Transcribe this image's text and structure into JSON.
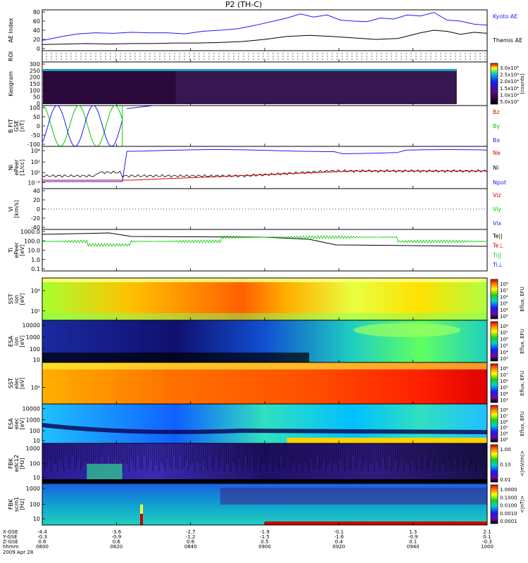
{
  "title": "P2 (TH-C)",
  "colors": {
    "blue": "#1a1aff",
    "black": "#000000",
    "red": "#e00000",
    "green": "#00cc00",
    "grid": "#000000"
  },
  "chart_data": [
    {
      "id": "ae",
      "type": "line",
      "ylabel_lines": [
        "AE Index"
      ],
      "ylim": [
        0,
        80
      ],
      "yticks": [
        "80",
        "60",
        "40",
        "20",
        "0"
      ],
      "legend": [
        {
          "name": "Kyoto AE",
          "color": "#1a1aff"
        },
        {
          "name": "Themis AE",
          "color": "#000000"
        }
      ],
      "series": [
        {
          "name": "Kyoto AE",
          "color": "#1a1aff",
          "x": [
            0,
            0.04,
            0.08,
            0.12,
            0.16,
            0.2,
            0.24,
            0.28,
            0.32,
            0.36,
            0.4,
            0.44,
            0.48,
            0.52,
            0.55,
            0.58,
            0.61,
            0.64,
            0.67,
            0.7,
            0.73,
            0.76,
            0.79,
            0.82,
            0.85,
            0.88,
            0.91,
            0.94,
            0.97,
            1.0
          ],
          "y": [
            20,
            27,
            33,
            35,
            34,
            36,
            35,
            35,
            33,
            38,
            40,
            43,
            50,
            58,
            64,
            72,
            66,
            70,
            60,
            58,
            57,
            64,
            62,
            70,
            68,
            75,
            60,
            58,
            52,
            50
          ]
        },
        {
          "name": "Themis AE",
          "color": "#000000",
          "x": [
            0,
            0.05,
            0.1,
            0.15,
            0.2,
            0.25,
            0.3,
            0.35,
            0.4,
            0.45,
            0.5,
            0.55,
            0.6,
            0.65,
            0.7,
            0.75,
            0.8,
            0.85,
            0.88,
            0.91,
            0.94,
            0.97,
            1.0
          ],
          "y": [
            12,
            13,
            14,
            13,
            14,
            14,
            15,
            15,
            16,
            18,
            22,
            28,
            30,
            28,
            25,
            22,
            24,
            35,
            40,
            38,
            32,
            36,
            34
          ]
        }
      ]
    },
    {
      "id": "roi",
      "type": "scatter",
      "ylabel_lines": [
        "ROI"
      ]
    },
    {
      "id": "keogram",
      "type": "heatmap",
      "ylabel_lines": [
        "Keogram"
      ],
      "ylim": [
        0,
        300
      ],
      "yticks": [
        "300",
        "250",
        "200",
        "150",
        "100",
        "50",
        "0"
      ],
      "colorbar": {
        "title": "[counts]",
        "ticks": [
          "3.0x10⁴",
          "2.5x10⁴",
          "2.0x10⁴",
          "1.5x10⁴",
          "1.0x10⁴",
          "5.0x10³"
        ]
      }
    },
    {
      "id": "bfit",
      "type": "line",
      "ylabel_lines": [
        "B FIT",
        "GSE",
        "[nT]"
      ],
      "ylim": [
        -100,
        100
      ],
      "yticks": [
        "100",
        "50",
        "0",
        "-50",
        "-100"
      ],
      "legend": [
        {
          "name": "Bz",
          "color": "#e00000"
        },
        {
          "name": "By",
          "color": "#00cc00"
        },
        {
          "name": "Bx",
          "color": "#1a1aff"
        }
      ]
    },
    {
      "id": "density",
      "type": "line",
      "ylabel_lines": [
        "Ni",
        "ePeer",
        "[1/cc]"
      ],
      "yticks": [
        "10⁴",
        "10²",
        "10⁰",
        "10⁻²"
      ],
      "legend": [
        {
          "name": "Ne",
          "color": "#e00000"
        },
        {
          "name": "Ni",
          "color": "#000000"
        },
        {
          "name": "Npot",
          "color": "#1a1aff"
        }
      ]
    },
    {
      "id": "velocity",
      "type": "line",
      "ylabel_lines": [
        "Vi",
        "[km/s]"
      ],
      "yticks": [
        "40",
        "20",
        "0",
        "-20",
        "-40"
      ],
      "legend": [
        {
          "name": "Viz",
          "color": "#e00000"
        },
        {
          "name": "Viy",
          "color": "#00cc00"
        },
        {
          "name": "Vix",
          "color": "#1a1aff"
        }
      ]
    },
    {
      "id": "temperature",
      "type": "line",
      "ylabel_lines": [
        "Ti",
        "ePeer",
        "[eV]"
      ],
      "yticks": [
        "1000.0",
        "100.0",
        "10.0",
        "1.0",
        "0.1"
      ],
      "legend": [
        {
          "name": "Te||",
          "color": "#000000"
        },
        {
          "name": "Te⊥",
          "color": "#e00000"
        },
        {
          "name": "Ti||",
          "color": "#00cc00"
        },
        {
          "name": "Ti⊥",
          "color": "#1a1aff"
        }
      ]
    },
    {
      "id": "sst_ion",
      "type": "heatmap",
      "ylabel_lines": [
        "SST",
        "ion",
        "[eV]"
      ],
      "yticks": [
        "10⁶",
        "10⁵"
      ],
      "colorbar": {
        "title": "Eflux, EFU",
        "ticks": [
          "10⁸",
          "10⁷",
          "10⁶",
          "10⁵",
          "10⁴",
          "10³"
        ]
      }
    },
    {
      "id": "esa_ion",
      "type": "heatmap",
      "ylabel_lines": [
        "ESA",
        "ion",
        "[eV]"
      ],
      "yticks": [
        "10000",
        "1000",
        "100",
        "10"
      ],
      "colorbar": {
        "title": "Eflux, EFU",
        "ticks": [
          "10⁸",
          "10⁷",
          "10⁶",
          "10⁵",
          "10⁴",
          "10³"
        ]
      }
    },
    {
      "id": "sst_elec",
      "type": "heatmap",
      "ylabel_lines": [
        "SST",
        "elec",
        "[eV]"
      ],
      "yticks": [
        "10⁵"
      ],
      "colorbar": {
        "title": "Eflux, EFU",
        "ticks": [
          "10⁸",
          "10⁷",
          "10⁶",
          "10⁵",
          "10⁴",
          "10³"
        ]
      }
    },
    {
      "id": "esa_elec",
      "type": "heatmap",
      "ylabel_lines": [
        "ESA",
        "elec",
        "[eV]"
      ],
      "yticks": [
        "10000",
        "1000",
        "100",
        "10"
      ],
      "colorbar": {
        "title": "Eflux, EFU",
        "ticks": [
          "10⁸",
          "10⁷",
          "10⁶",
          "10⁵",
          "10⁴",
          "10³"
        ]
      }
    },
    {
      "id": "fbk_e",
      "type": "heatmap",
      "ylabel_lines": [
        "FBK",
        "edc12",
        "[Hz]"
      ],
      "yticks": [
        "1000",
        "100",
        "10"
      ],
      "colorbar": {
        "title": "<|mV/m|>",
        "ticks": [
          "1.00",
          "0.10",
          "0.01"
        ]
      }
    },
    {
      "id": "fbk_b",
      "type": "heatmap",
      "ylabel_lines": [
        "FBK",
        "scm1",
        "[Hz]"
      ],
      "yticks": [
        "1000",
        "100",
        "10"
      ],
      "colorbar": {
        "title": "<|nT|>",
        "ticks": [
          "1.0000",
          "0.1000",
          "0.0100",
          "0.0010",
          "0.0001"
        ]
      }
    }
  ],
  "axis": {
    "row_labels": [
      "X-GSE",
      "Y-GSE",
      "Z-GSE",
      "hhmm",
      "2009 Apr 28"
    ],
    "ticks": [
      {
        "x": "-4.4",
        "y": "-0.3",
        "z": "0.6",
        "t": "0800"
      },
      {
        "x": "-3.6",
        "y": "-0.9",
        "z": "0.6",
        "t": "0820"
      },
      {
        "x": "-2.7",
        "y": "-1.2",
        "z": "0.6",
        "t": "0840"
      },
      {
        "x": "-1.9",
        "y": "-1.5",
        "z": "0.5",
        "t": "0900"
      },
      {
        "x": "-0.1",
        "y": "-1.6",
        "z": "0.4",
        "t": "0920"
      },
      {
        "x": "1.3",
        "y": "-0.9",
        "z": "0.1",
        "t": "0940"
      },
      {
        "x": "2.1",
        "y": "0.1",
        "z": "-0.3",
        "t": "1000"
      }
    ]
  }
}
